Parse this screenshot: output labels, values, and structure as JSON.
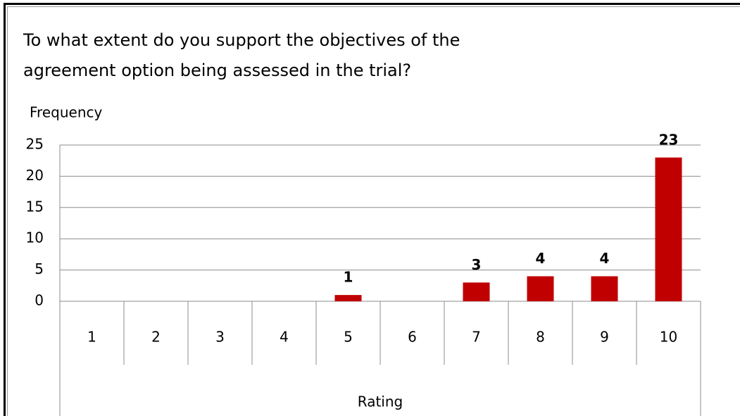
{
  "chart_data": {
    "type": "bar",
    "title": "To what extent do you support the objectives of the agreement option being assessed in the trial?",
    "y_label": "Frequency",
    "x_label": "Rating",
    "categories": [
      "1",
      "2",
      "3",
      "4",
      "5",
      "6",
      "7",
      "8",
      "9",
      "10"
    ],
    "values": [
      0,
      0,
      0,
      0,
      1,
      0,
      3,
      4,
      4,
      23
    ],
    "color": "#c00000",
    "ylim": [
      0,
      25
    ],
    "yticks": [
      0,
      5,
      10,
      15,
      20,
      25
    ],
    "grid": true
  }
}
